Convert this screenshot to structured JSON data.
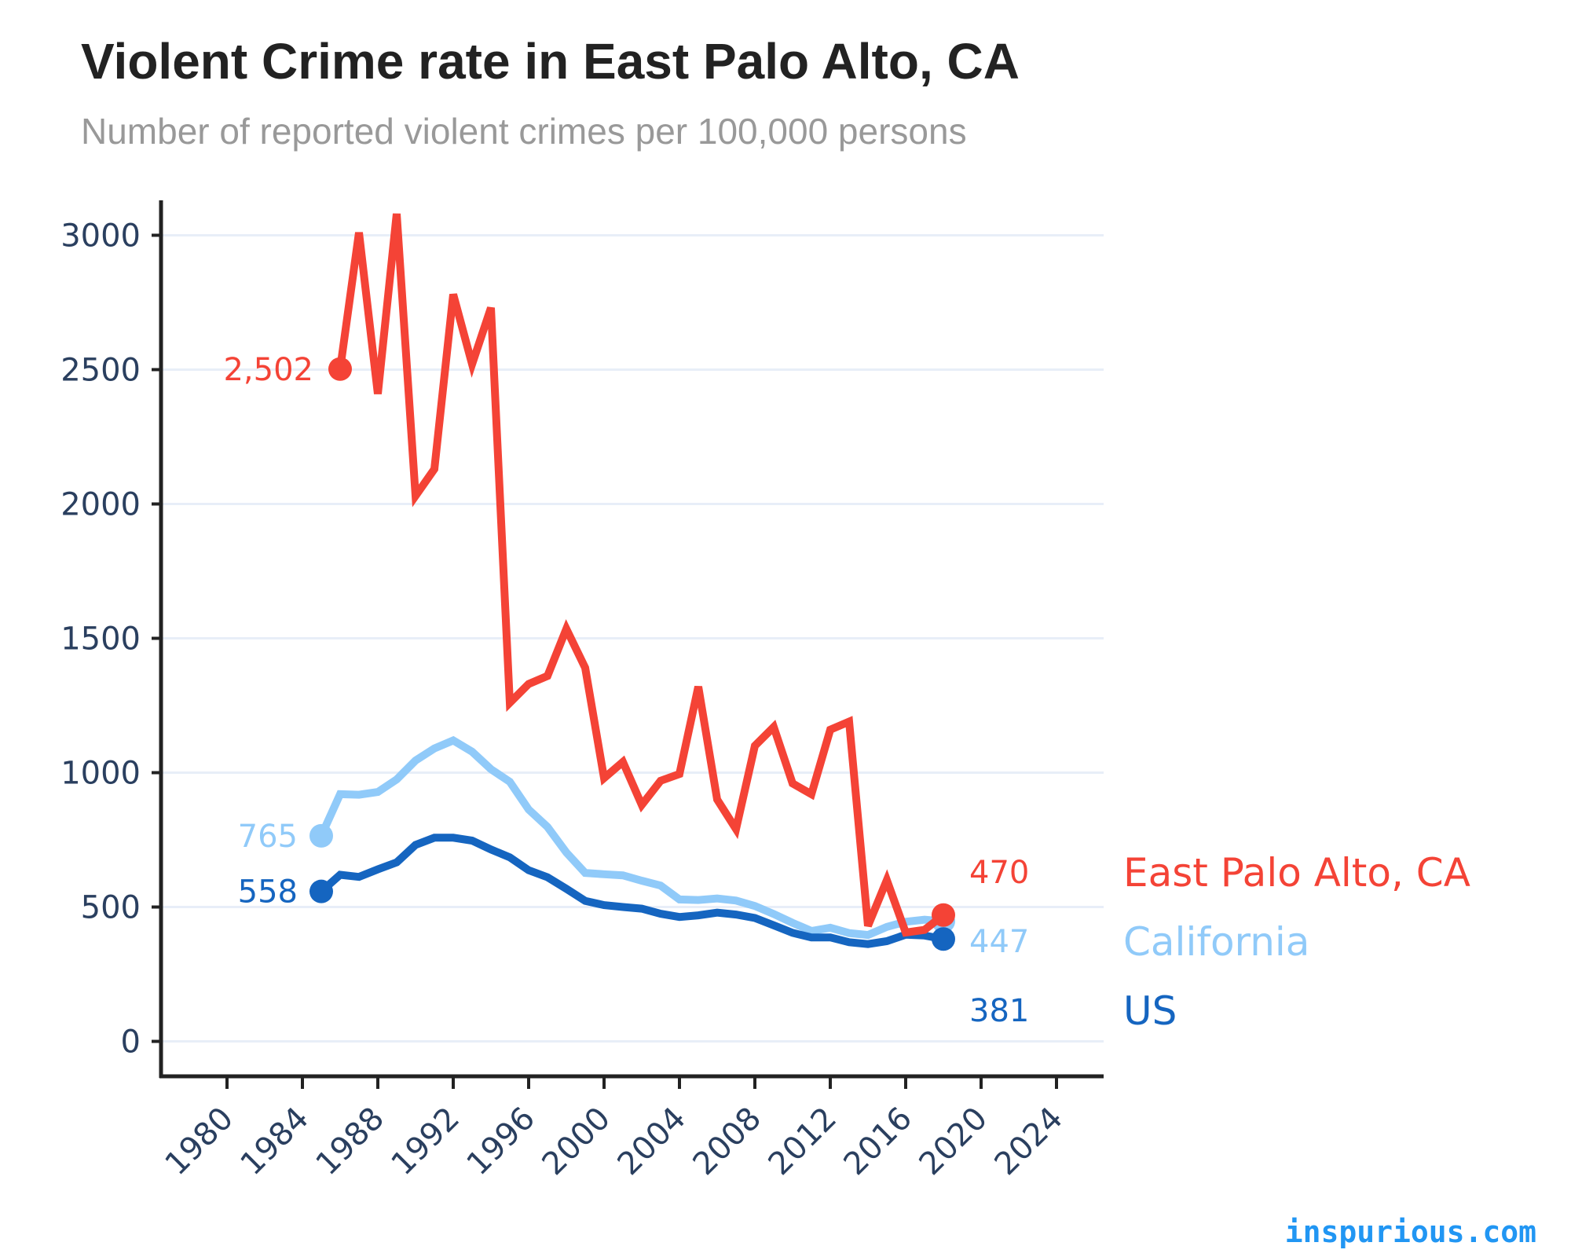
{
  "chart_data": {
    "type": "line",
    "title": "Violent Crime rate in East Palo Alto, CA",
    "subtitle": "Number of reported violent crimes per 100,000 persons",
    "xlabel": "",
    "ylabel": "",
    "xlim": [
      1976.5,
      2026.5
    ],
    "ylim": [
      -130,
      3130
    ],
    "x_ticks": [
      1980,
      1984,
      1988,
      1992,
      1996,
      2000,
      2004,
      2008,
      2012,
      2016,
      2020,
      2024
    ],
    "y_ticks": [
      0,
      500,
      1000,
      1500,
      2000,
      2500,
      3000
    ],
    "grid": "horizontal",
    "series": [
      {
        "name": "California",
        "color": "#90caf9",
        "start_label": "765",
        "end_label": "447",
        "x": [
          1985,
          1986,
          1987,
          1988,
          1989,
          1990,
          1991,
          1992,
          1993,
          1994,
          1995,
          1996,
          1997,
          1998,
          1999,
          2000,
          2001,
          2002,
          2003,
          2004,
          2005,
          2006,
          2007,
          2008,
          2009,
          2010,
          2011,
          2012,
          2013,
          2014,
          2015,
          2016,
          2017,
          2018
        ],
        "values": [
          765,
          920,
          918,
          928,
          975,
          1045,
          1090,
          1120,
          1078,
          1013,
          966,
          863,
          798,
          703,
          627,
          622,
          618,
          598,
          580,
          528,
          526,
          532,
          524,
          504,
          474,
          441,
          411,
          423,
          403,
          396,
          426,
          445,
          453,
          447
        ]
      },
      {
        "name": "US",
        "color": "#1565c0",
        "start_label": "558",
        "end_label": "381",
        "x": [
          1985,
          1986,
          1987,
          1988,
          1989,
          1990,
          1991,
          1992,
          1993,
          1994,
          1995,
          1996,
          1997,
          1998,
          1999,
          2000,
          2001,
          2002,
          2003,
          2004,
          2005,
          2006,
          2007,
          2008,
          2009,
          2010,
          2011,
          2012,
          2013,
          2014,
          2015,
          2016,
          2017,
          2018
        ],
        "values": [
          558,
          620,
          612,
          640,
          666,
          731,
          758,
          758,
          747,
          714,
          685,
          637,
          611,
          568,
          523,
          507,
          500,
          494,
          475,
          463,
          469,
          479,
          472,
          459,
          432,
          404,
          387,
          387,
          369,
          362,
          373,
          397,
          394,
          381
        ]
      },
      {
        "name": "East Palo Alto, CA",
        "color": "#f44336",
        "start_label": "2,502",
        "end_label": "470",
        "x": [
          1986,
          1987,
          1988,
          1989,
          1990,
          1991,
          1992,
          1993,
          1994,
          1995,
          1996,
          1997,
          1998,
          1999,
          2000,
          2001,
          2002,
          2003,
          2004,
          2005,
          2006,
          2007,
          2008,
          2009,
          2010,
          2011,
          2012,
          2013,
          2014,
          2015,
          2016,
          2017,
          2018
        ],
        "values": [
          2502,
          3010,
          2410,
          3080,
          2030,
          2130,
          2780,
          2520,
          2730,
          1260,
          1330,
          1360,
          1535,
          1390,
          980,
          1040,
          880,
          970,
          995,
          1320,
          900,
          790,
          1100,
          1170,
          960,
          920,
          1160,
          1190,
          430,
          600,
          405,
          415,
          470
        ]
      }
    ]
  },
  "watermark": "inspurious.com"
}
